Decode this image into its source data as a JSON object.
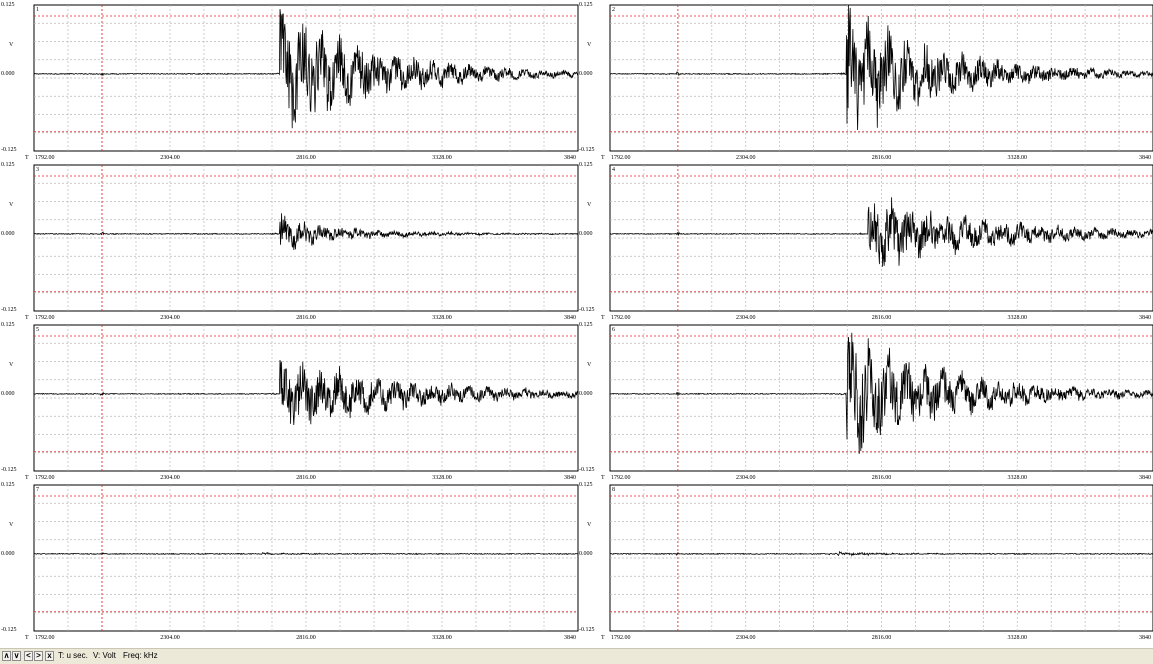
{
  "panels": [
    {
      "channel": "1",
      "burst_time": 2716,
      "peak_amplitude": 0.125,
      "decay": 0.55,
      "burst_width": 180
    },
    {
      "channel": "2",
      "burst_time": 2683,
      "peak_amplitude": 0.125,
      "decay": 0.55,
      "burst_width": 180
    },
    {
      "channel": "3",
      "burst_time": 2716,
      "peak_amplitude": 0.035,
      "decay": 0.45,
      "burst_width": 140
    },
    {
      "channel": "4",
      "burst_time": 2765,
      "peak_amplitude": 0.075,
      "decay": 0.65,
      "burst_width": 200
    },
    {
      "channel": "5",
      "burst_time": 2716,
      "peak_amplitude": 0.075,
      "decay": 0.7,
      "burst_width": 200
    },
    {
      "channel": "6",
      "burst_time": 2683,
      "peak_amplitude": 0.125,
      "decay": 0.6,
      "burst_width": 180
    },
    {
      "channel": "7",
      "burst_time": 2650,
      "peak_amplitude": 0.002,
      "decay": 0.3,
      "burst_width": 80
    },
    {
      "channel": "8",
      "burst_time": 2650,
      "peak_amplitude": 0.004,
      "decay": 0.3,
      "burst_width": 120
    }
  ],
  "axis": {
    "x_label": "T",
    "y_label": "V",
    "x_ticks": [
      "1792.00",
      "2304.00",
      "2816.00",
      "3328.00",
      "3840"
    ],
    "x_tick_values": [
      1792,
      2304,
      2816,
      3328,
      3840
    ],
    "y_ticks": [
      "0.125",
      "0.000",
      "-0.125"
    ],
    "xlim": [
      1792,
      3840
    ],
    "ylim": [
      -0.14,
      0.125
    ],
    "threshold": 0.105,
    "trigger_time": 2048,
    "grid": true
  },
  "statusbar": {
    "buttons": [
      "∧",
      "∨",
      "<",
      ">",
      "x"
    ],
    "time_unit": "T: u sec.",
    "volt_unit": "V: Volt",
    "freq_unit": "Freq: kHz"
  },
  "colors": {
    "grid": "#b8b8b8",
    "threshold": "#e02020",
    "trace": "#000000",
    "statusbar": "#ece9d8"
  }
}
